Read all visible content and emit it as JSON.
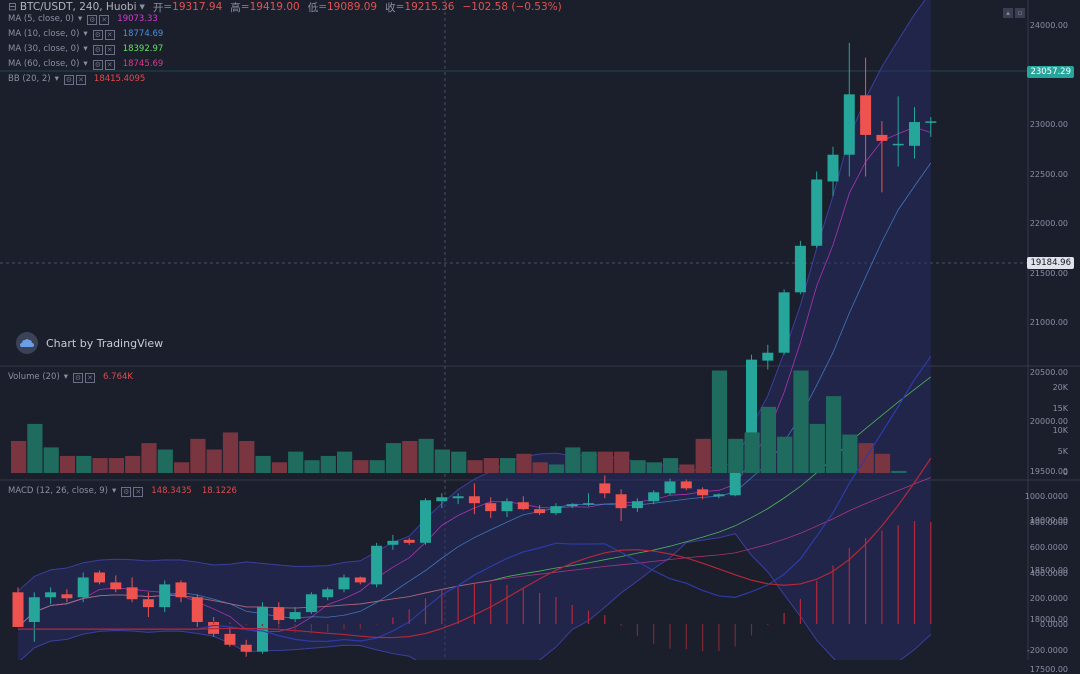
{
  "header": {
    "symbol": "BTC/USDT, 240, Huobi",
    "open_label": "开",
    "open": "=19317.94",
    "high_label": "高",
    "high": "=19419.00",
    "low_label": "低",
    "low": "=19089.09",
    "close_label": "收",
    "close": "=19215.36",
    "change": "−102.58 (−0.53%)"
  },
  "indicators": [
    {
      "label": "MA (5, close, 0)",
      "value": "19073.33",
      "color": "#d63ad2"
    },
    {
      "label": "MA (10, close, 0)",
      "value": "18774.69",
      "color": "#4a90e2"
    },
    {
      "label": "MA (30, close, 0)",
      "value": "18392.97",
      "color": "#5ee65e"
    },
    {
      "label": "MA (60, close, 0)",
      "value": "18745.69",
      "color": "#d43c8e"
    }
  ],
  "bb": {
    "label": "BB (20, 2)",
    "value": "18415.4095",
    "color": "#e64a4a"
  },
  "volume": {
    "label": "Volume (20)",
    "value": "6.764K",
    "color": "#e04b4b"
  },
  "macd": {
    "label": "MACD (12, 26, close, 9)",
    "value": "148.3435",
    "signal": "18.1226"
  },
  "watermark": "Chart by TradingView",
  "price_axis": [
    "24000.00",
    "23500.00",
    "23000.00",
    "22500.00",
    "22000.00",
    "21500.00",
    "21000.00",
    "20500.00",
    "20000.00",
    "19500.00",
    "19000.00",
    "18500.00",
    "18000.00",
    "17500.00"
  ],
  "volume_axis": [
    "20K",
    "15K",
    "10K",
    "5K",
    "0"
  ],
  "macd_axis": [
    "1000.0000",
    "800.0000",
    "600.0000",
    "400.0000",
    "200.0000",
    "0.0000",
    "-200.0000"
  ],
  "last_price": "23057.29",
  "crosshair_price": "19184.96",
  "colors": {
    "up": "#26a69a",
    "down": "#ef5350",
    "bg": "#1b1e2b"
  },
  "chart_data": {
    "type": "candlestick",
    "ohlc": [
      [
        18300,
        18350,
        17950,
        17950
      ],
      [
        18000,
        18300,
        17800,
        18250
      ],
      [
        18250,
        18350,
        18180,
        18300
      ],
      [
        18280,
        18330,
        18200,
        18240
      ],
      [
        18250,
        18500,
        18200,
        18450
      ],
      [
        18500,
        18520,
        18380,
        18400
      ],
      [
        18400,
        18470,
        18300,
        18330
      ],
      [
        18350,
        18450,
        18200,
        18230
      ],
      [
        18230,
        18300,
        18050,
        18150
      ],
      [
        18150,
        18420,
        18100,
        18380
      ],
      [
        18400,
        18420,
        18200,
        18250
      ],
      [
        18250,
        18280,
        17950,
        18000
      ],
      [
        18000,
        18050,
        17850,
        17880
      ],
      [
        17880,
        17950,
        17750,
        17770
      ],
      [
        17770,
        17820,
        17650,
        17700
      ],
      [
        17700,
        18200,
        17680,
        18150
      ],
      [
        18150,
        18200,
        17980,
        18020
      ],
      [
        18030,
        18150,
        18000,
        18100
      ],
      [
        18100,
        18300,
        18080,
        18280
      ],
      [
        18250,
        18350,
        18220,
        18330
      ],
      [
        18330,
        18480,
        18300,
        18450
      ],
      [
        18450,
        18460,
        18380,
        18400
      ],
      [
        18380,
        18800,
        18350,
        18770
      ],
      [
        18780,
        18880,
        18730,
        18820
      ],
      [
        18830,
        18850,
        18780,
        18800
      ],
      [
        18800,
        19250,
        18780,
        19230
      ],
      [
        19220,
        19300,
        19150,
        19260
      ],
      [
        19250,
        19300,
        19190,
        19270
      ],
      [
        19270,
        19400,
        19090,
        19200
      ],
      [
        19200,
        19260,
        19050,
        19120
      ],
      [
        19120,
        19250,
        19060,
        19220
      ],
      [
        19210,
        19270,
        19130,
        19140
      ],
      [
        19140,
        19180,
        19080,
        19100
      ],
      [
        19100,
        19200,
        19080,
        19170
      ],
      [
        19170,
        19200,
        19150,
        19190
      ],
      [
        19190,
        19300,
        19170,
        19200
      ],
      [
        19400,
        19480,
        19250,
        19300
      ],
      [
        19290,
        19340,
        19020,
        19150
      ],
      [
        19150,
        19250,
        19110,
        19220
      ],
      [
        19220,
        19330,
        19190,
        19310
      ],
      [
        19300,
        19450,
        19280,
        19420
      ],
      [
        19420,
        19440,
        19330,
        19350
      ],
      [
        19340,
        19360,
        19240,
        19280
      ],
      [
        19270,
        19300,
        19250,
        19290
      ],
      [
        19280,
        19650,
        19270,
        19610
      ],
      [
        19610,
        20700,
        19600,
        20650
      ],
      [
        20640,
        20800,
        20550,
        20720
      ],
      [
        20720,
        21360,
        20700,
        21330
      ],
      [
        21330,
        21850,
        21310,
        21800
      ],
      [
        21800,
        22550,
        21780,
        22470
      ],
      [
        22450,
        22800,
        22300,
        22720
      ],
      [
        22720,
        23850,
        22500,
        23330
      ],
      [
        23320,
        23700,
        22500,
        22920
      ],
      [
        22920,
        23060,
        22340,
        22860
      ],
      [
        22820,
        23310,
        22600,
        22830
      ],
      [
        22810,
        23200,
        22680,
        23050
      ],
      [
        23050,
        23100,
        22900,
        23057
      ]
    ]
  }
}
